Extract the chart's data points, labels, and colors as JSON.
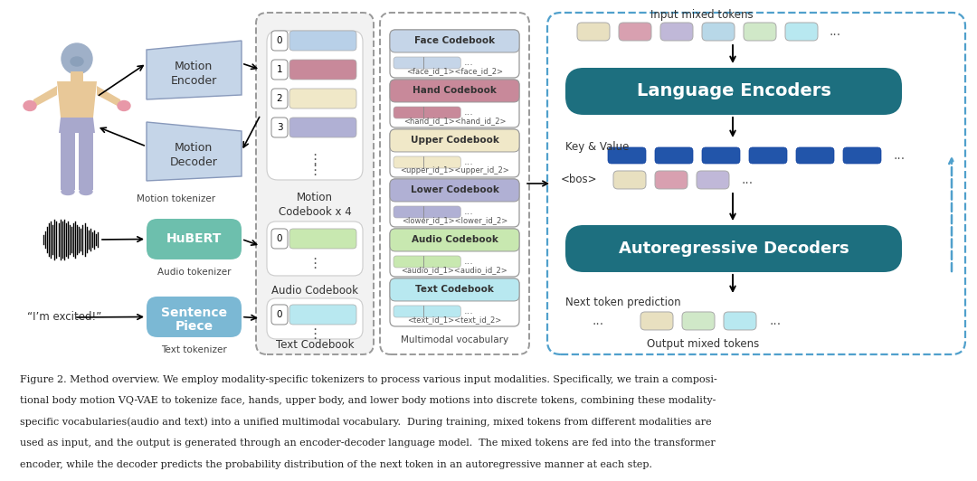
{
  "bg_color": "#ffffff",
  "caption_lines": [
    "Figure 2. Method overview. We employ modality-specific tokenizers to process various input modalities. Specifically, we train a composi-",
    "tional body motion VQ-VAE to tokenize face, hands, upper body, and lower body motions into discrete tokens, combining these modality-",
    "specific vocabularies(audio and text) into a unified multimodal vocabulary.  During training, mixed tokens from different modalities are",
    "used as input, and the output is generated through an encoder-decoder language model.  The mixed tokens are fed into the transformer",
    "encoder, while the decoder predicts the probability distribution of the next token in an autoregressive manner at each step."
  ],
  "encoder_box_color": "#1d6f7f",
  "decoder_box_color": "#1d6f7f",
  "hubert_color": "#6dbfad",
  "sentence_piece_color": "#7bb8d4",
  "motion_enc_color": "#c5d5e8",
  "motion_dec_color": "#c5d5e8",
  "face_cb_color": "#c5d5e8",
  "hand_cb_color": "#c8899a",
  "upper_cb_color": "#f0e8c8",
  "lower_cb_color": "#b0b0d4",
  "audio_cb_color": "#c8e8b0",
  "text_cb_color": "#b8e8f0",
  "face_title_bg": "#c5d5e8",
  "hand_title_bg": "#c8899a",
  "upper_title_bg": "#f0e8c8",
  "lower_title_bg": "#b0b0d4",
  "audio_title_bg": "#c8e8b0",
  "text_title_bg": "#b8e8f0",
  "kv_bar_color": "#2255aa",
  "tok_colors_input": [
    "#e8e0c0",
    "#d8a0b0",
    "#c0b8d8",
    "#b8d8e8",
    "#d0e8c8",
    "#b8e8f0"
  ],
  "tok_colors_bos": [
    "#e8e0c0",
    "#d8a0b0",
    "#c0b8d8"
  ],
  "tok_colors_output": [
    "#e8e0c0",
    "#d0e8c8",
    "#b8e8f0"
  ],
  "motion_entry_colors": [
    "#b8d0e8",
    "#c8899a",
    "#f0e8c8",
    "#b0b0d4"
  ],
  "motion_entry_labels": [
    "0",
    "1",
    "2",
    "3"
  ]
}
